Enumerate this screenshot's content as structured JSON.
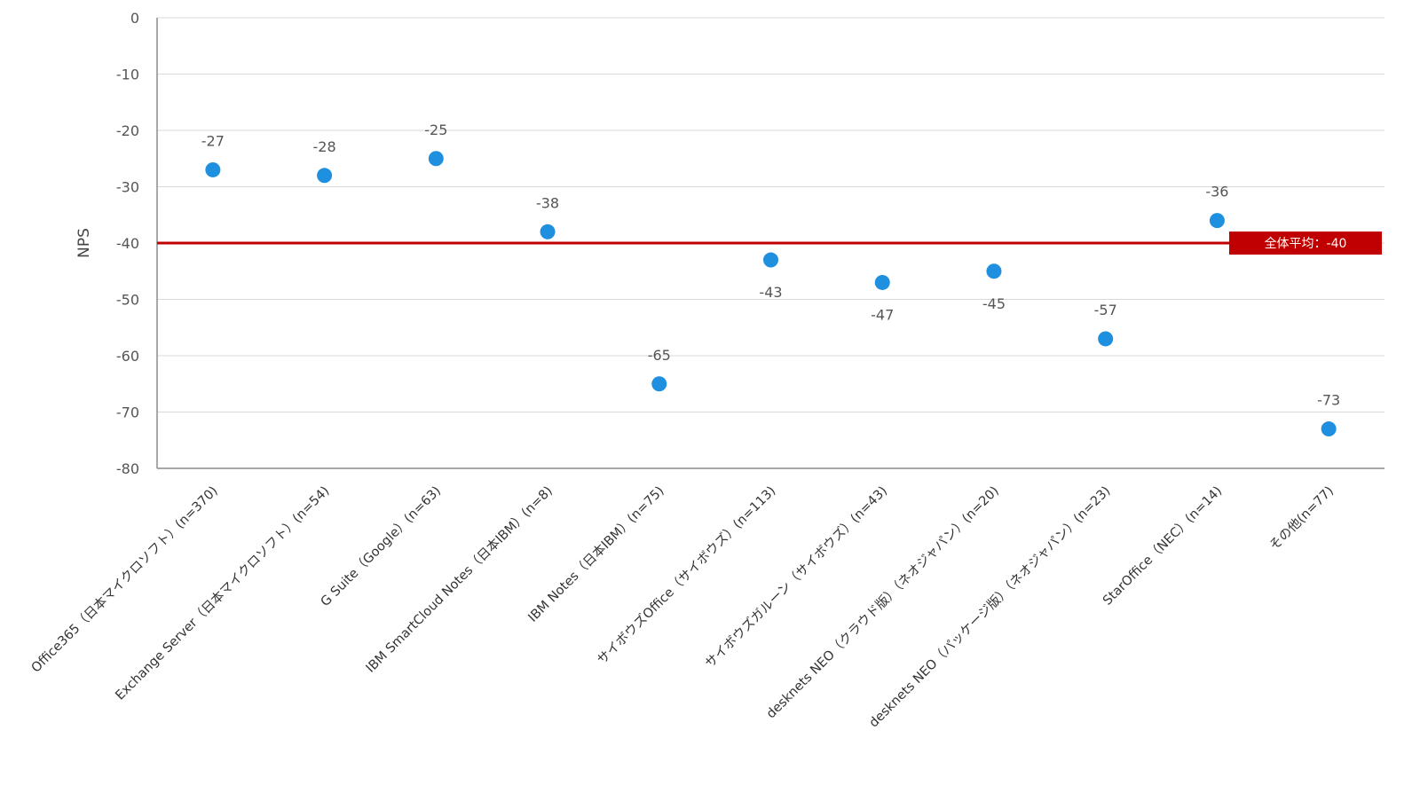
{
  "chart_data": {
    "type": "scatter",
    "title": "",
    "xlabel": "",
    "ylabel": "NPS",
    "ylim": [
      -80,
      0
    ],
    "yticks": [
      0,
      -10,
      -20,
      -30,
      -40,
      -50,
      -60,
      -70,
      -80
    ],
    "grid": true,
    "legend": "none",
    "categories": [
      "Office365（日本マイクロソフト）(n=370)",
      "Exchange Server（日本マイクロソフト）(n=54)",
      "G Suite（Google）(n=63)",
      "IBM SmartCloud Notes（日本IBM）(n=8)",
      "IBM Notes（日本IBM）(n=75)",
      "サイボウズOffice（サイボウズ）(n=113)",
      "サイボウズガルーン（サイボウズ）(n=43)",
      "desknets NEO（クラウド版）（ネオジャパン）(n=20)",
      "desknets NEO（パッケージ版）（ネオジャパン）(n=23)",
      "StarOffice（NEC）(n=14)",
      "その他(n=77)"
    ],
    "series": [
      {
        "values": [
          -27,
          -28,
          -25,
          -38,
          -65,
          -43,
          -47,
          -45,
          -57,
          -36,
          -73
        ]
      }
    ],
    "data_labels": [
      "-27",
      "-28",
      "-25",
      "-38",
      "-65",
      "-43",
      "-47",
      "-45",
      "-57",
      "-36",
      "-73"
    ],
    "label_positions": [
      "above",
      "above",
      "above",
      "above",
      "above",
      "below",
      "below",
      "below",
      "above",
      "above",
      "above"
    ],
    "reference_line": {
      "value": -40,
      "label": "全体平均：-40",
      "color": "#c00000"
    },
    "colors": {
      "point": "#1f8fe0",
      "grid": "#d9d9d9",
      "axis": "#8c8c8c",
      "average": "#c00000"
    }
  }
}
